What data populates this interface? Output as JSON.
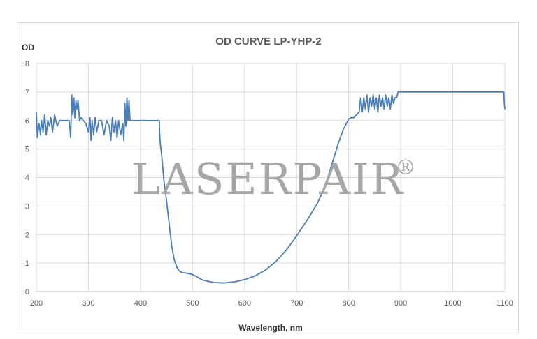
{
  "chart_data": {
    "type": "line",
    "title": "OD CURVE LP-YHP-2",
    "xlabel": "Wavelength, nm",
    "ylabel": "OD",
    "xlim": [
      200,
      1100
    ],
    "ylim": [
      0,
      8
    ],
    "xticks": [
      200,
      300,
      400,
      500,
      600,
      700,
      800,
      900,
      1000,
      1100
    ],
    "yticks": [
      0,
      1,
      2,
      3,
      4,
      5,
      6,
      7,
      8
    ],
    "grid": true,
    "legend": "none",
    "line_color": "#4a7ebb",
    "series": [
      {
        "x": [
          200,
          202,
          205,
          208,
          210,
          213,
          216,
          219,
          222,
          225,
          228,
          231,
          235,
          240,
          245,
          250,
          255,
          260,
          263,
          266,
          268,
          270,
          272,
          274,
          276,
          278,
          280,
          283,
          286,
          290,
          295,
          300,
          303,
          305,
          307,
          310,
          313,
          316,
          320,
          325,
          330,
          335,
          340,
          343,
          346,
          349,
          352,
          355,
          358,
          362,
          366,
          368,
          370,
          372,
          374,
          376,
          378,
          380,
          390,
          400,
          410,
          420,
          436,
          437,
          438,
          440,
          442,
          445,
          450,
          455,
          460,
          465,
          470,
          475,
          480,
          490,
          500,
          510,
          520,
          540,
          560,
          580,
          600,
          620,
          640,
          660,
          680,
          700,
          720,
          730,
          740,
          750,
          760,
          770,
          780,
          790,
          800,
          805,
          810,
          815,
          820,
          823,
          826,
          829,
          832,
          835,
          838,
          841,
          844,
          847,
          850,
          853,
          856,
          859,
          862,
          865,
          868,
          871,
          874,
          877,
          880,
          883,
          886,
          889,
          892,
          895,
          900,
          950,
          1000,
          1050,
          1098,
          1099,
          1100
        ],
        "y": [
          6.3,
          5.4,
          5.9,
          5.5,
          6.0,
          5.6,
          6.2,
          5.5,
          6.0,
          5.8,
          6.1,
          5.6,
          6.2,
          5.8,
          6.0,
          6.0,
          6.0,
          6.0,
          6.0,
          5.4,
          6.9,
          6.2,
          6.8,
          6.1,
          6.7,
          6.4,
          6.7,
          6.0,
          6.1,
          6.0,
          5.9,
          5.6,
          6.1,
          5.3,
          6.0,
          5.5,
          6.1,
          5.6,
          6.0,
          6.0,
          5.5,
          6.0,
          5.8,
          5.3,
          6.1,
          5.6,
          6.0,
          5.4,
          6.0,
          5.5,
          5.9,
          5.3,
          6.6,
          5.8,
          6.8,
          6.0,
          6.7,
          6.0,
          6.0,
          6.0,
          6.0,
          6.0,
          6.0,
          5.5,
          5.2,
          4.9,
          4.5,
          3.9,
          3.2,
          2.4,
          1.6,
          1.1,
          0.85,
          0.72,
          0.67,
          0.64,
          0.6,
          0.5,
          0.4,
          0.32,
          0.3,
          0.34,
          0.42,
          0.55,
          0.75,
          1.05,
          1.45,
          1.95,
          2.5,
          2.8,
          3.1,
          3.5,
          4.0,
          4.6,
          5.2,
          5.7,
          6.05,
          6.1,
          6.1,
          6.2,
          6.3,
          6.8,
          6.3,
          6.8,
          6.4,
          6.9,
          6.3,
          6.8,
          6.5,
          6.9,
          6.4,
          6.8,
          6.3,
          6.9,
          6.5,
          6.8,
          6.4,
          6.9,
          6.5,
          6.8,
          6.4,
          6.9,
          6.6,
          6.8,
          6.8,
          7.0,
          7.0,
          7.0,
          7.0,
          7.0,
          7.0,
          6.6,
          6.4
        ]
      }
    ]
  },
  "watermark": {
    "text": "LASERPAIR",
    "mark": "®"
  }
}
